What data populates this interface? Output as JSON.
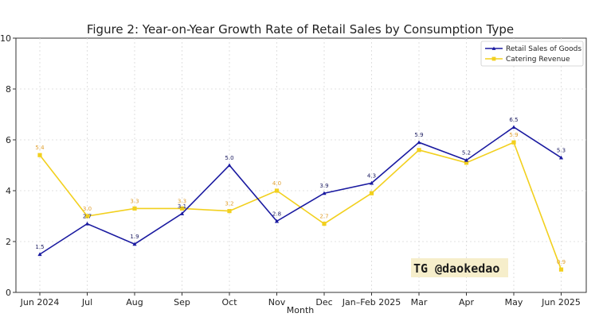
{
  "chart_data": {
    "type": "line",
    "title": "Figure 2: Year-on-Year Growth Rate of Retail Sales by Consumption Type",
    "xlabel": "Month",
    "ylabel": "",
    "categories": [
      "Jun 2024",
      "Jul",
      "Aug",
      "Sep",
      "Oct",
      "Nov",
      "Dec",
      "Jan–Feb 2025",
      "Mar",
      "Apr",
      "May",
      "Jun 2025"
    ],
    "ylim": [
      0,
      10
    ],
    "yticks": [
      "0",
      "2",
      "4",
      "6",
      "8",
      "10"
    ],
    "grid": true,
    "legend_position": "top-right",
    "series": [
      {
        "name": "Retail Sales of Goods",
        "color": "#1a1aa0",
        "marker": "triangle",
        "values": [
          1.5,
          2.7,
          1.9,
          3.1,
          5.0,
          2.8,
          3.9,
          4.3,
          5.9,
          5.2,
          6.5,
          5.3
        ],
        "labels": [
          "1.5",
          "2.7",
          "1.9",
          "3.1",
          "5.0",
          "2.8",
          "3.9",
          "4.3",
          "5.9",
          "5.2",
          "6.5",
          "5.3"
        ]
      },
      {
        "name": "Catering Revenue",
        "color": "#f2d01e",
        "label_color": "#e0a030",
        "marker": "square",
        "values": [
          5.4,
          3.0,
          3.3,
          3.3,
          3.2,
          4.0,
          2.7,
          3.9,
          5.6,
          5.1,
          5.9,
          0.9
        ],
        "labels": [
          "5.4",
          "3.0",
          "3.3",
          "3.3",
          "3.2",
          "4.0",
          "2.7",
          "",
          "",
          "",
          "5.9",
          "0.9"
        ]
      }
    ]
  },
  "watermark": {
    "text": "TG @daokedao",
    "background": "#f6eecb"
  }
}
